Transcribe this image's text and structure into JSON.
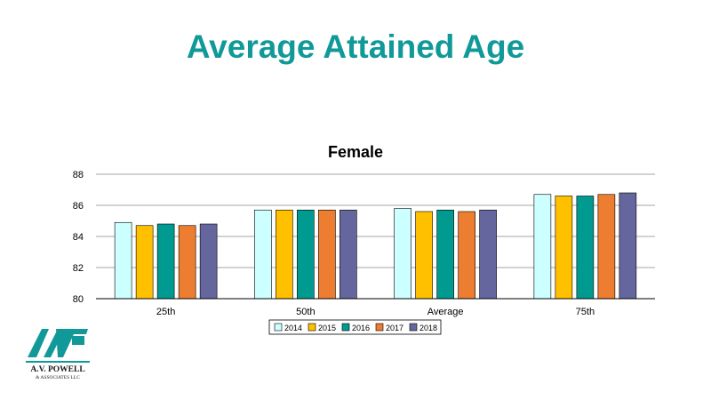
{
  "slide": {
    "title": "Average Attained Age"
  },
  "logo": {
    "line1": "A.V. POWELL",
    "line2": "& ASSOCIATES LLC",
    "mark": "AVP"
  },
  "colors": {
    "title": "#11999a",
    "series": [
      "#ccffff",
      "#ffc000",
      "#009a91",
      "#ed7d31",
      "#65669e"
    ]
  },
  "chart_data": {
    "type": "bar",
    "title": "Female",
    "categories": [
      "25th",
      "50th",
      "Average",
      "75th"
    ],
    "series": [
      {
        "name": "2014",
        "values": [
          84.9,
          85.7,
          85.8,
          86.7
        ]
      },
      {
        "name": "2015",
        "values": [
          84.7,
          85.7,
          85.6,
          86.6
        ]
      },
      {
        "name": "2016",
        "values": [
          84.8,
          85.7,
          85.7,
          86.6
        ]
      },
      {
        "name": "2017",
        "values": [
          84.7,
          85.7,
          85.6,
          86.7
        ]
      },
      {
        "name": "2018",
        "values": [
          84.8,
          85.7,
          85.7,
          86.8
        ]
      }
    ],
    "ylim": [
      80,
      88
    ],
    "yticks": [
      80,
      82,
      84,
      86,
      88
    ],
    "xlabel": "",
    "ylabel": "",
    "grid": true,
    "legend_position": "bottom"
  }
}
